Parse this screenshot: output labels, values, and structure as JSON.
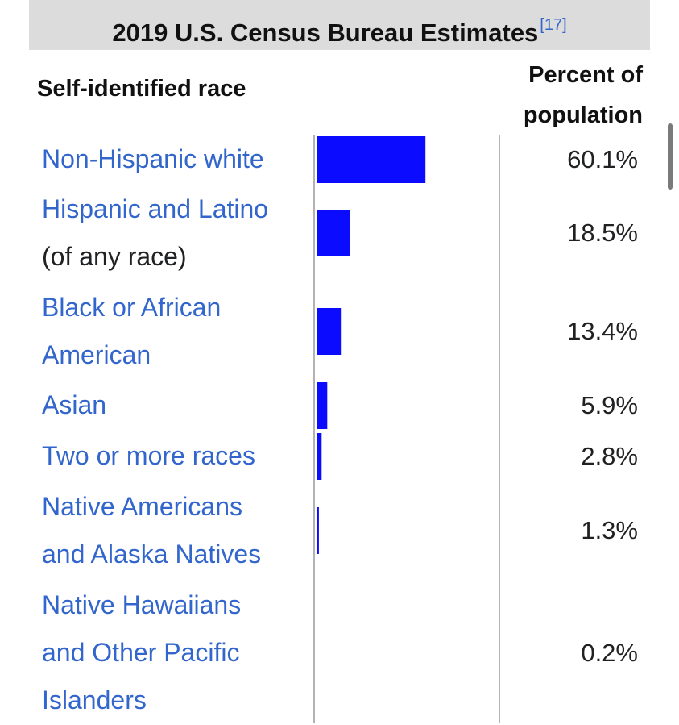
{
  "caption": {
    "title": "2019 U.S. Census Bureau Estimates",
    "reference": "[17]"
  },
  "headers": {
    "race": "Self-identified race",
    "percent_line1": "Percent of",
    "percent_line2": "population"
  },
  "colors": {
    "bar": "#0b0bff",
    "link": "#3366cc",
    "caption_bg": "#dcdcdc",
    "divider": "#b3b3b3"
  },
  "chart_data": {
    "type": "bar",
    "orientation": "horizontal",
    "title": "2019 U.S. Census Bureau Estimates",
    "categories": [
      "Non-Hispanic white",
      "Hispanic and Latino (of any race)",
      "Black or African American",
      "Asian",
      "Two or more races",
      "Native Americans and Alaska Natives",
      "Native Hawaiians and Other Pacific Islanders"
    ],
    "values": [
      60.1,
      18.5,
      13.4,
      5.9,
      2.8,
      1.3,
      0.2
    ],
    "value_labels": [
      "60.1%",
      "18.5%",
      "13.4%",
      "5.9%",
      "2.8%",
      "1.3%",
      "0.2%"
    ],
    "xlim": [
      0,
      100
    ],
    "grid": false
  },
  "rows": [
    {
      "lines": [
        "Non-Hispanic white"
      ],
      "extra": ""
    },
    {
      "lines": [
        "Hispanic and Latino"
      ],
      "extra": "(of any race)"
    },
    {
      "lines": [
        "Black or African",
        "American"
      ],
      "extra": ""
    },
    {
      "lines": [
        "Asian"
      ],
      "extra": ""
    },
    {
      "lines": [
        "Two or more races"
      ],
      "extra": ""
    },
    {
      "lines": [
        "Native Americans",
        "and Alaska Natives"
      ],
      "extra": ""
    },
    {
      "lines": [
        "Native Hawaiians",
        "and Other Pacific",
        "Islanders"
      ],
      "extra": ""
    }
  ]
}
